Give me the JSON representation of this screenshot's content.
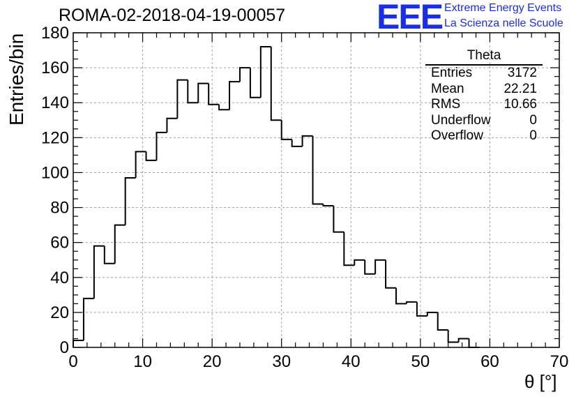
{
  "header": {
    "title": "ROMA-02-2018-04-19-00057",
    "logo_mark": "EEE",
    "logo_line1": "Extreme Energy Events",
    "logo_line2": "La Scienza nelle Scuole"
  },
  "stats": {
    "name": "Theta",
    "rows": [
      {
        "label": "Entries",
        "value": "3172"
      },
      {
        "label": "Mean",
        "value": "22.21"
      },
      {
        "label": "RMS",
        "value": "10.66"
      },
      {
        "label": "Underflow",
        "value": "0"
      },
      {
        "label": "Overflow",
        "value": "0"
      }
    ]
  },
  "chart_data": {
    "type": "bar",
    "histogram": true,
    "title": "ROMA-02-2018-04-19-00057",
    "xlabel": "θ [°]",
    "ylabel": "Entries/bin",
    "xlim": [
      0,
      70
    ],
    "ylim": [
      0,
      180
    ],
    "bin_width": 1.5,
    "bin_start": 0,
    "values": [
      4,
      28,
      58,
      48,
      70,
      97,
      112,
      107,
      123,
      131,
      153,
      140,
      151,
      139,
      136,
      152,
      160,
      143,
      172,
      130,
      119,
      115,
      121,
      82,
      81,
      66,
      47,
      50,
      42,
      50,
      34,
      25,
      26,
      18,
      20,
      10,
      3,
      5,
      0
    ],
    "x_ticks": [
      0,
      10,
      20,
      30,
      40,
      50,
      60,
      70
    ],
    "y_ticks": [
      0,
      20,
      40,
      60,
      80,
      100,
      120,
      140,
      160,
      180
    ],
    "grid": true,
    "line_color": "#000000",
    "grid_color": "#a0a0a0"
  }
}
